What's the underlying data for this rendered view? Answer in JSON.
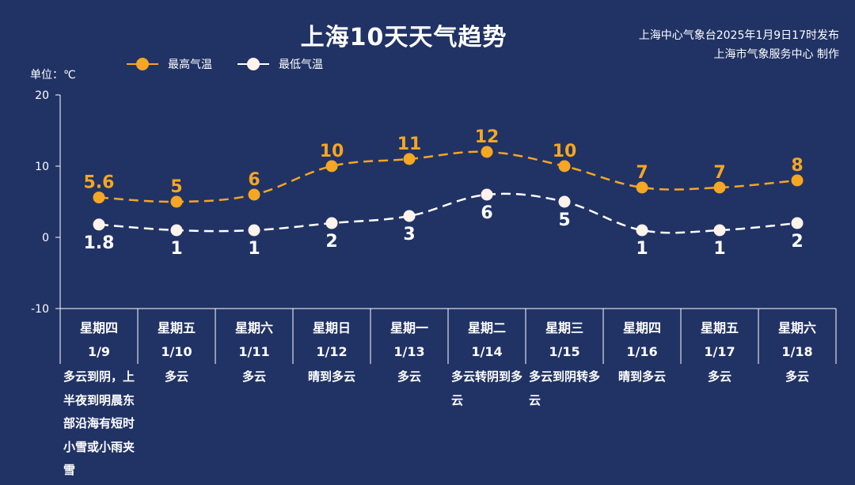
{
  "header": {
    "title": "上海10天天气趋势",
    "issuer_line1": "上海中心气象台2025年1月9日17时发布",
    "issuer_line2": "上海市气象服务中心 制作",
    "unit": "单位：℃"
  },
  "colors": {
    "background": "#213365",
    "high": "#F5A623",
    "low": "#FFFFFF",
    "high_label": "#F5A623",
    "low_label": "#FFFFFF"
  },
  "chart_data": {
    "type": "line",
    "ylim": [
      -10,
      20
    ],
    "yticks": [
      "-10",
      "0",
      "10",
      "20"
    ],
    "legend_position": "top-left",
    "grid": false,
    "x": [
      "1/9",
      "1/10",
      "1/11",
      "1/12",
      "1/13",
      "1/14",
      "1/15",
      "1/16",
      "1/17",
      "1/18"
    ],
    "series": [
      {
        "name": "最高气温",
        "values": [
          5.6,
          5,
          6,
          10,
          11,
          12,
          10,
          7,
          7,
          8
        ],
        "labels": [
          "5.6",
          "5",
          "6",
          "10",
          "11",
          "12",
          "10",
          "7",
          "7",
          "8"
        ]
      },
      {
        "name": "最低气温",
        "values": [
          1.8,
          1,
          1,
          2,
          3,
          6,
          5,
          1,
          1,
          2
        ],
        "labels": [
          "1.8",
          "1",
          "1",
          "2",
          "3",
          "6",
          "5",
          "1",
          "1",
          "2"
        ]
      }
    ]
  },
  "days": [
    {
      "weekday": "星期四",
      "date": "1/9",
      "weather": "多云到阴，上半夜到明晨东部沿海有短时小雪或小雨夹雪"
    },
    {
      "weekday": "星期五",
      "date": "1/10",
      "weather": "多云"
    },
    {
      "weekday": "星期六",
      "date": "1/11",
      "weather": "多云"
    },
    {
      "weekday": "星期日",
      "date": "1/12",
      "weather": "晴到多云"
    },
    {
      "weekday": "星期一",
      "date": "1/13",
      "weather": "多云"
    },
    {
      "weekday": "星期二",
      "date": "1/14",
      "weather": "多云转阴到多云"
    },
    {
      "weekday": "星期三",
      "date": "1/15",
      "weather": "多云到阴转多云"
    },
    {
      "weekday": "星期四",
      "date": "1/16",
      "weather": "晴到多云"
    },
    {
      "weekday": "星期五",
      "date": "1/17",
      "weather": "多云"
    },
    {
      "weekday": "星期六",
      "date": "1/18",
      "weather": "多云"
    }
  ]
}
